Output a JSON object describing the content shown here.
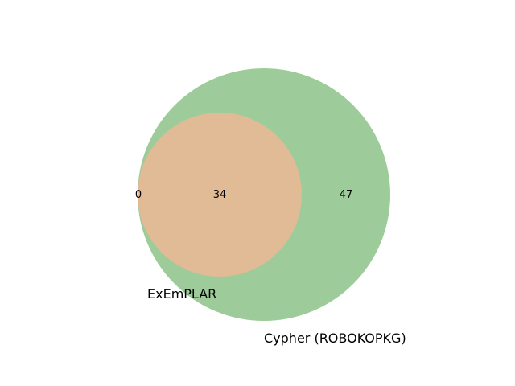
{
  "chart_data": {
    "type": "venn",
    "sets": [
      {
        "name": "ExEmPLAR",
        "color": "#e0bb96"
      },
      {
        "name": "Cypher (ROBOKOPKG)",
        "color": "#9dcc9a"
      }
    ],
    "regions": {
      "only_first": "0",
      "intersection": "34",
      "only_second": "47"
    },
    "colors": {
      "background": "#ffffff",
      "overlap_fill": "#e0bb96",
      "text": "#000000"
    }
  }
}
